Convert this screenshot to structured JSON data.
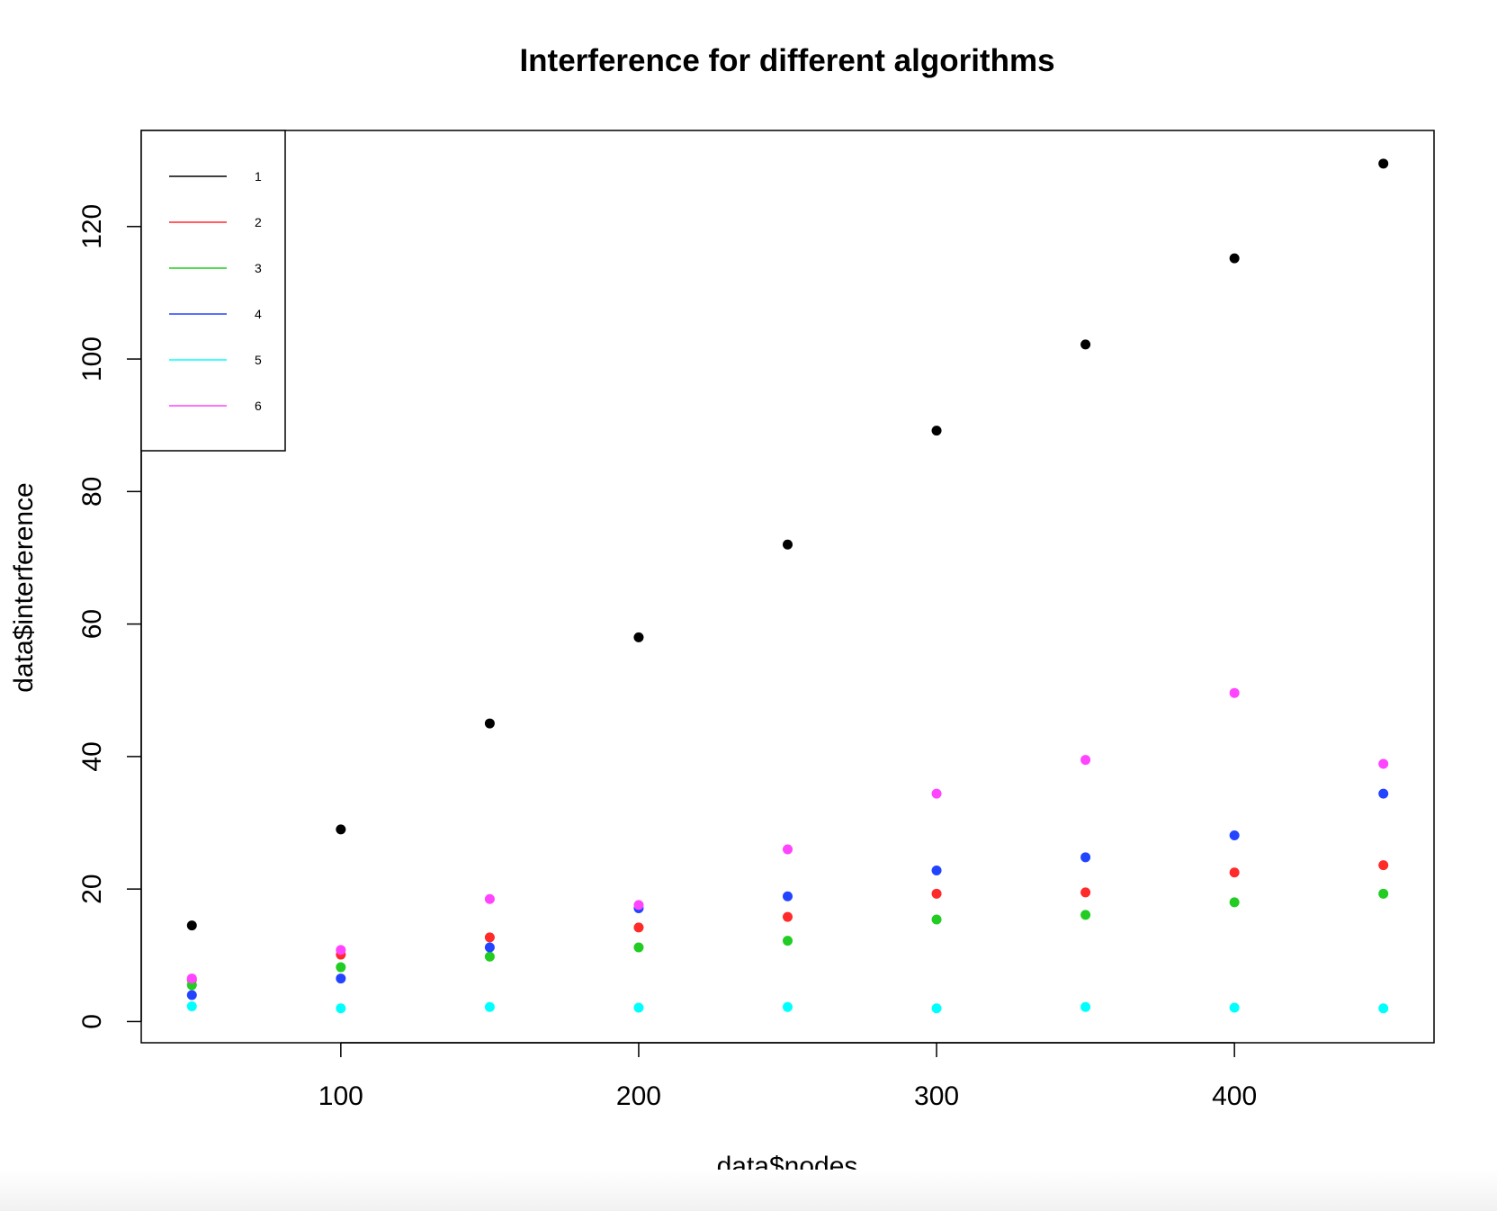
{
  "chart_data": {
    "type": "scatter",
    "title": "Interference for different algorithms",
    "xlabel": "data$nodes",
    "ylabel": "data$interference",
    "xlim": [
      33,
      467
    ],
    "ylim": [
      -3.2,
      134.5
    ],
    "xticks": [
      100,
      200,
      300,
      400
    ],
    "yticks": [
      0,
      20,
      40,
      60,
      80,
      100,
      120
    ],
    "grid": false,
    "legend_position": "top-left",
    "x": [
      50,
      100,
      150,
      200,
      250,
      300,
      350,
      400,
      450
    ],
    "series": [
      {
        "name": "1",
        "color": "#000000",
        "values": [
          14.5,
          29,
          45,
          58,
          72,
          89.2,
          102.2,
          115.2,
          129.5
        ]
      },
      {
        "name": "2",
        "color": "#ff2a2a",
        "values": [
          6.3,
          10.1,
          12.7,
          14.2,
          15.8,
          19.3,
          19.5,
          22.5,
          23.6
        ]
      },
      {
        "name": "3",
        "color": "#22cc22",
        "values": [
          5.5,
          8.2,
          9.8,
          11.2,
          12.2,
          15.4,
          16.1,
          18,
          19.3
        ]
      },
      {
        "name": "4",
        "color": "#2244ff",
        "values": [
          4,
          6.5,
          11.2,
          17.1,
          18.9,
          22.8,
          24.8,
          28.1,
          34.4
        ]
      },
      {
        "name": "5",
        "color": "#00ffff",
        "values": [
          2.3,
          2,
          2.2,
          2.1,
          2.2,
          2,
          2.2,
          2.1,
          2
        ]
      },
      {
        "name": "6",
        "color": "#ff44ff",
        "values": [
          6.5,
          10.8,
          18.5,
          17.6,
          26,
          34.4,
          39.5,
          49.6,
          38.9
        ]
      }
    ]
  }
}
